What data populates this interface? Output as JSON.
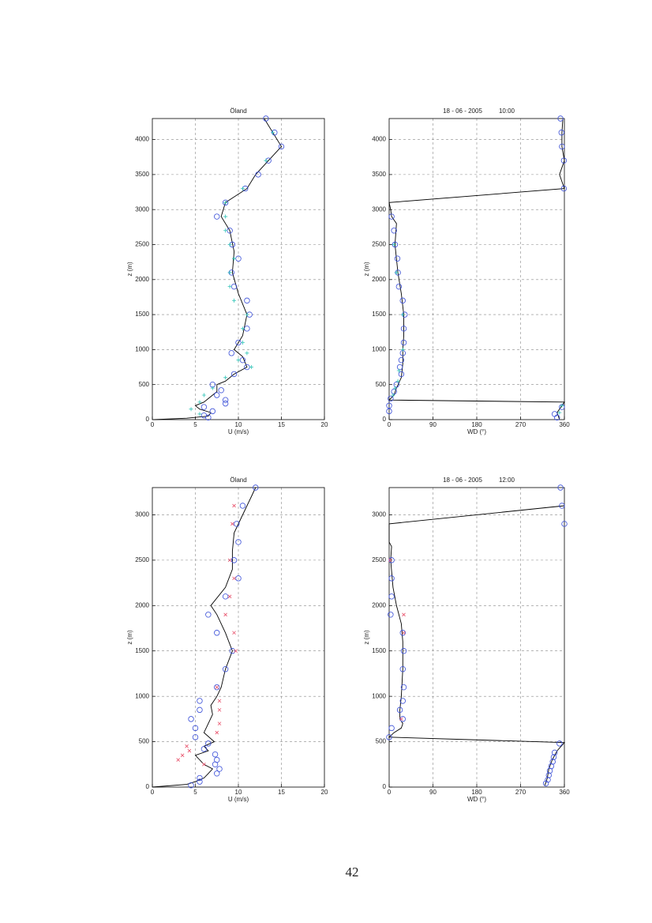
{
  "chart_data": [
    {
      "type": "line",
      "title": "Öland",
      "xlabel": "U  (m/s)",
      "ylabel": "z  (m)",
      "grid": true,
      "xlim": [
        0,
        20
      ],
      "xticks": [
        0,
        5,
        10,
        15,
        20
      ],
      "ylim": [
        0,
        4300
      ],
      "yticks": [
        0,
        500,
        1000,
        1500,
        2000,
        2500,
        3000,
        3500,
        4000
      ],
      "series": [
        {
          "marker": "line",
          "color": "#000000",
          "x": [
            0.2,
            4,
            6.5,
            6.8,
            5.5,
            5,
            6,
            6.5,
            7.5,
            7.5,
            8.5,
            9.5,
            11,
            10.5,
            9.5,
            10.5,
            11,
            10,
            9.3,
            9.5,
            9,
            8,
            8.5,
            11,
            12,
            13.5,
            15,
            14,
            13
          ],
          "y": [
            0,
            20,
            50,
            100,
            150,
            200,
            250,
            300,
            400,
            500,
            550,
            650,
            750,
            900,
            1000,
            1200,
            1500,
            1800,
            2100,
            2400,
            2700,
            2900,
            3100,
            3300,
            3500,
            3700,
            3900,
            4100,
            4300
          ]
        },
        {
          "marker": "circle",
          "color": "#3a4fd8",
          "x": [
            13.2,
            14.2,
            15,
            13.5,
            12.3,
            10.8,
            8.5,
            7.5,
            9,
            9.3,
            10,
            9.2,
            9.5,
            11,
            11.3,
            11,
            10,
            9.2,
            10.5,
            11,
            9.5,
            7,
            8,
            7.5,
            8.5,
            8.5,
            6,
            7,
            6,
            6.5
          ],
          "y": [
            4300,
            4100,
            3900,
            3700,
            3500,
            3300,
            3100,
            2900,
            2700,
            2500,
            2300,
            2100,
            1900,
            1700,
            1500,
            1300,
            1100,
            950,
            850,
            750,
            650,
            500,
            420,
            350,
            280,
            230,
            180,
            120,
            60,
            30
          ]
        },
        {
          "marker": "plus",
          "color": "#2ec4b6",
          "x": [
            14,
            13.2,
            10.5,
            8.5,
            8.5,
            8.5,
            9,
            9.5,
            9,
            9,
            9.5,
            11,
            10.5,
            10.5,
            11,
            10,
            11.5,
            8.5,
            7,
            6,
            5.5,
            4.5,
            5.5
          ],
          "y": [
            4100,
            3700,
            3300,
            3100,
            2900,
            2700,
            2500,
            2300,
            2100,
            1900,
            1700,
            1500,
            1300,
            1100,
            950,
            850,
            750,
            600,
            450,
            350,
            250,
            150,
            80
          ]
        }
      ]
    },
    {
      "type": "line",
      "title": "18 - 06 - 2005",
      "title_time": "10:00",
      "xlabel": "WD (°)",
      "ylabel": "z  (m)",
      "grid": true,
      "xlim": [
        0,
        360
      ],
      "xticks": [
        0,
        90,
        180,
        270,
        360
      ],
      "ylim": [
        0,
        4300
      ],
      "yticks": [
        0,
        500,
        1000,
        1500,
        2000,
        2500,
        3000,
        3500,
        4000
      ],
      "series": [
        {
          "marker": "line",
          "color": "#000000",
          "x": [
            350,
            345,
            350,
            355,
            360,
            0,
            10,
            15,
            25,
            28,
            28,
            30,
            30,
            25,
            18,
            12,
            15,
            5,
            3,
            0,
            360,
            350,
            360,
            355,
            355,
            357
          ],
          "y": [
            0,
            100,
            150,
            200,
            250,
            280,
            350,
            450,
            600,
            800,
            1000,
            1200,
            1500,
            1800,
            2100,
            2500,
            2800,
            2900,
            3000,
            3100,
            3300,
            3500,
            3700,
            3900,
            4100,
            4300
          ]
        },
        {
          "marker": "circle",
          "color": "#3a4fd8",
          "x": [
            352,
            354,
            355,
            359,
            359,
            5,
            10,
            12,
            17,
            18,
            20,
            28,
            32,
            30,
            30,
            28,
            25,
            22,
            25,
            15,
            10,
            3,
            0,
            0,
            355,
            340,
            345
          ],
          "y": [
            4300,
            4100,
            3900,
            3700,
            3300,
            2900,
            2700,
            2500,
            2300,
            2100,
            1900,
            1700,
            1500,
            1300,
            1100,
            950,
            850,
            750,
            650,
            500,
            400,
            300,
            200,
            120,
            180,
            80,
            30
          ]
        },
        {
          "marker": "plus",
          "color": "#2ec4b6",
          "x": [
            10,
            15,
            28,
            28,
            20,
            18,
            12,
            8,
            355,
            350
          ],
          "y": [
            2500,
            2100,
            1500,
            1000,
            700,
            550,
            450,
            350,
            200,
            100
          ]
        }
      ]
    },
    {
      "type": "line",
      "title": "Öland",
      "xlabel": "U  (m/s)",
      "ylabel": "z  (m)",
      "grid": true,
      "xlim": [
        0,
        20
      ],
      "xticks": [
        0,
        5,
        10,
        15,
        20
      ],
      "ylim": [
        0,
        3300
      ],
      "yticks": [
        0,
        500,
        1000,
        1500,
        2000,
        2500,
        3000
      ],
      "series": [
        {
          "marker": "line",
          "color": "#000000",
          "x": [
            0,
            4,
            5,
            6,
            6.5,
            7,
            6,
            5.5,
            5,
            6.5,
            6,
            7.2,
            6,
            6.5,
            7,
            6.8,
            7.5,
            8,
            8.5,
            9.3,
            8.5,
            7.5,
            6.8,
            8.5,
            9.3,
            9.3,
            9.5,
            10.5,
            11.5,
            12
          ],
          "y": [
            0,
            30,
            60,
            100,
            150,
            200,
            250,
            300,
            350,
            400,
            450,
            500,
            600,
            700,
            800,
            900,
            1000,
            1100,
            1300,
            1500,
            1700,
            1900,
            2000,
            2200,
            2400,
            2600,
            2800,
            3000,
            3200,
            3300
          ]
        },
        {
          "marker": "circle",
          "color": "#3a4fd8",
          "x": [
            12,
            10.5,
            9.8,
            10,
            9.5,
            10,
            8.5,
            6.5,
            7.5,
            9.3,
            8.5,
            7.5,
            5.5,
            5.5,
            4.5,
            5,
            5,
            6.5,
            6,
            7.3,
            7.5,
            7.3,
            7.8,
            7.5,
            5.5,
            5.5,
            4.5
          ],
          "y": [
            3300,
            3100,
            2900,
            2700,
            2500,
            2300,
            2100,
            1900,
            1700,
            1500,
            1300,
            1100,
            950,
            850,
            750,
            650,
            550,
            480,
            420,
            360,
            300,
            250,
            200,
            150,
            100,
            60,
            20
          ]
        },
        {
          "marker": "cross",
          "color": "#e8506a",
          "x": [
            9.5,
            9.3,
            9,
            9.5,
            9,
            8.5,
            9.5,
            9.7,
            7.5,
            7.8,
            7.8,
            7.8,
            7.5,
            4,
            4.3,
            3.5,
            3,
            6
          ],
          "y": [
            3100,
            2900,
            2500,
            2300,
            2100,
            1900,
            1700,
            1500,
            1100,
            950,
            850,
            700,
            600,
            450,
            400,
            350,
            300,
            250
          ]
        }
      ]
    },
    {
      "type": "line",
      "title": "18 - 06 - 2005",
      "title_time": "12:00",
      "xlabel": "WD (°)",
      "ylabel": "z  (m)",
      "grid": true,
      "xlim": [
        0,
        360
      ],
      "xticks": [
        0,
        90,
        180,
        270,
        360
      ],
      "ylim": [
        0,
        3300
      ],
      "yticks": [
        0,
        500,
        1000,
        1500,
        2000,
        2500,
        3000
      ],
      "series": [
        {
          "marker": "line",
          "color": "#000000",
          "x": [
            320,
            325,
            328,
            335,
            345,
            355,
            360,
            0,
            10,
            25,
            28,
            22,
            22,
            25,
            28,
            28,
            25,
            15,
            8,
            3,
            5,
            0,
            0,
            360
          ],
          "y": [
            20,
            100,
            200,
            300,
            400,
            460,
            490,
            550,
            600,
            650,
            700,
            750,
            850,
            1000,
            1300,
            1600,
            1800,
            2000,
            2200,
            2500,
            2650,
            2700,
            2900,
            3100
          ]
        },
        {
          "marker": "circle",
          "color": "#3a4fd8",
          "x": [
            352,
            355,
            360,
            5,
            5,
            5,
            3,
            28,
            30,
            28,
            30,
            28,
            22,
            28,
            5,
            0,
            350,
            340,
            338,
            336,
            333,
            330,
            328,
            326,
            322
          ],
          "y": [
            3300,
            3100,
            2900,
            2500,
            2300,
            2100,
            1900,
            1700,
            1500,
            1300,
            1100,
            950,
            850,
            750,
            650,
            550,
            480,
            380,
            330,
            280,
            230,
            180,
            130,
            80,
            40
          ]
        },
        {
          "marker": "cross",
          "color": "#e8506a",
          "x": [
            2,
            30,
            30,
            25
          ],
          "y": [
            2500,
            1900,
            1700,
            750
          ]
        }
      ]
    }
  ],
  "page_number": "42"
}
